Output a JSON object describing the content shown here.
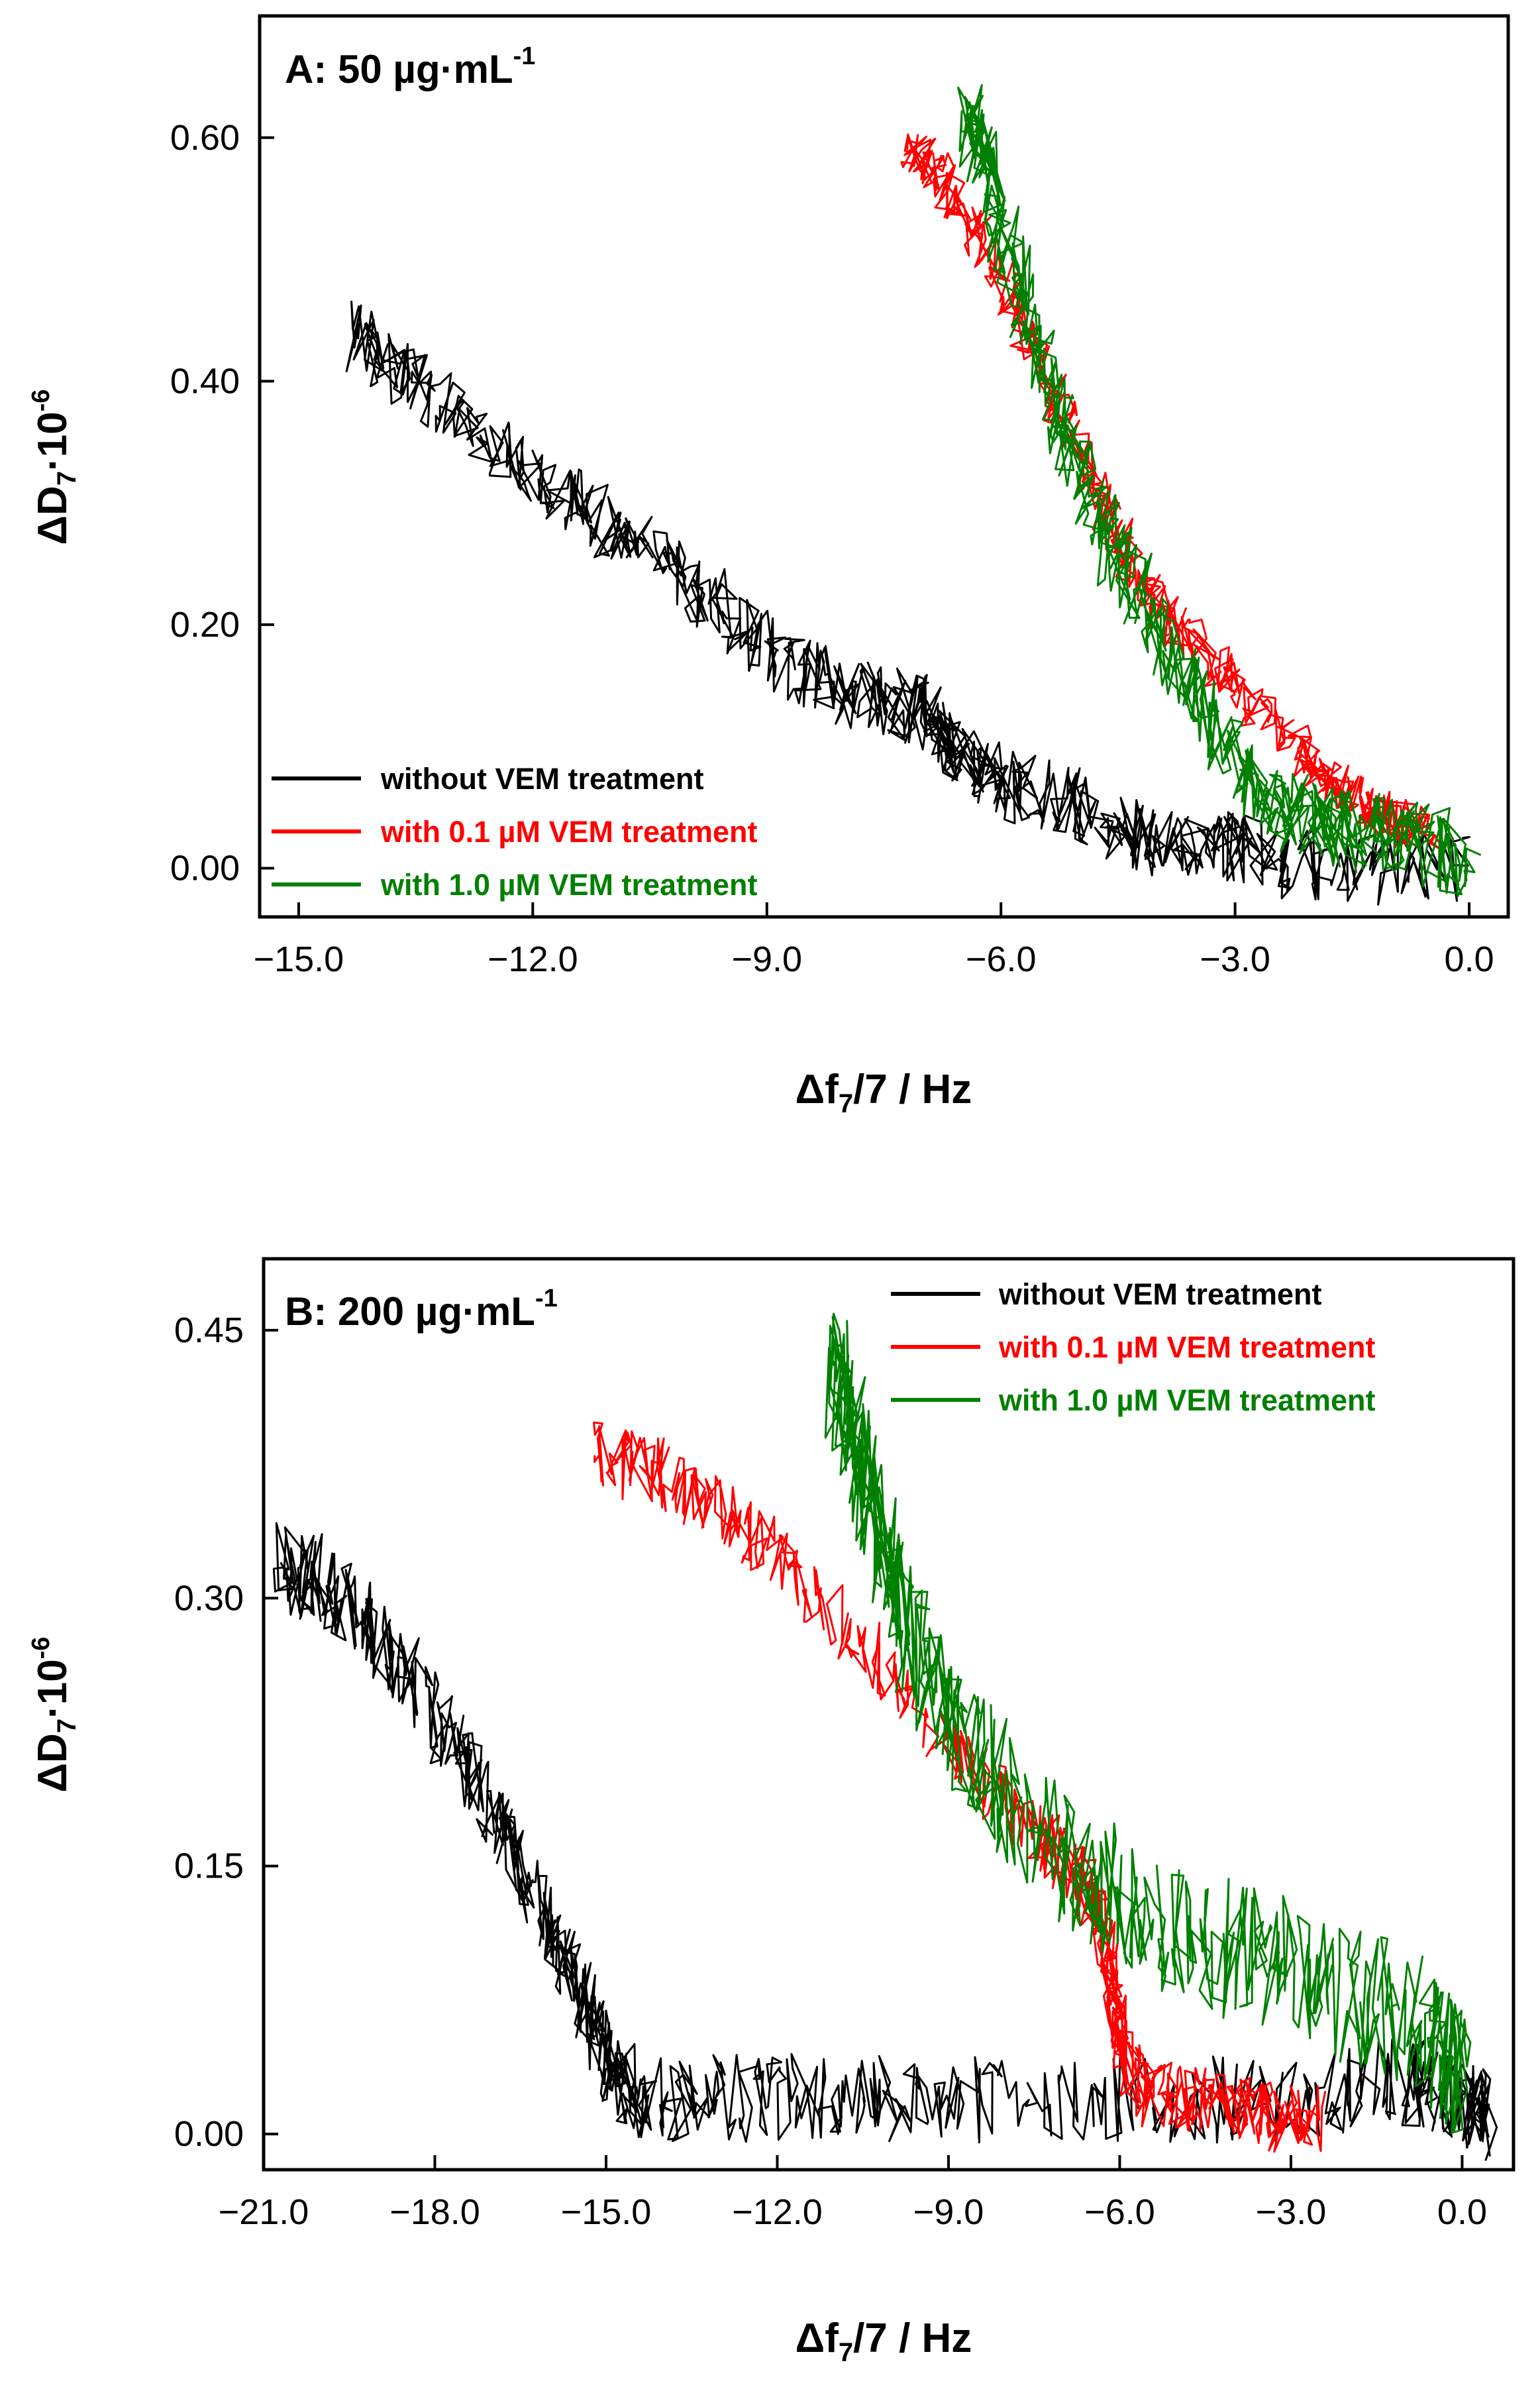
{
  "chart_data": [
    {
      "id": "A",
      "type": "line",
      "title": "A: 50 µg·mL",
      "title_exponent": "-1",
      "xlabel_main": "Δf",
      "xlabel_sub": "7",
      "xlabel_rest": "/7 / Hz",
      "ylabel_main": "ΔD",
      "ylabel_sub": "7",
      "ylabel_rest": "·10",
      "ylabel_exp": "-6",
      "xlim": [
        -15.5,
        0.5
      ],
      "ylim": [
        -0.04,
        0.7
      ],
      "xticks": [
        -15.0,
        -12.0,
        -9.0,
        -6.0,
        -3.0,
        0.0
      ],
      "xtick_labels": [
        "−15.0",
        "−12.0",
        "−9.0",
        "−6.0",
        "−3.0",
        "0.0"
      ],
      "yticks": [
        0.0,
        0.2,
        0.4,
        0.6
      ],
      "ytick_labels": [
        "0.00",
        "0.20",
        "0.40",
        "0.60"
      ],
      "legend_position": "bottom-left",
      "series": [
        {
          "name": "without VEM treatment",
          "color": "#000000",
          "points": [
            [
              0.0,
              0.0
            ],
            [
              -2.0,
              0.0
            ],
            [
              -3.0,
              0.02
            ],
            [
              -4.0,
              0.02
            ],
            [
              -5.0,
              0.05
            ],
            [
              -6.0,
              0.07
            ],
            [
              -6.6,
              0.1
            ],
            [
              -7.0,
              0.13
            ],
            [
              -7.6,
              0.14
            ],
            [
              -8.5,
              0.16
            ],
            [
              -9.5,
              0.21
            ],
            [
              -10.5,
              0.26
            ],
            [
              -11.5,
              0.3
            ],
            [
              -12.5,
              0.35
            ],
            [
              -13.5,
              0.4
            ],
            [
              -14.3,
              0.44
            ]
          ],
          "noise_y": 0.03
        },
        {
          "name": "with 0.1 µM VEM treatment",
          "color": "#ff0000",
          "points": [
            [
              -0.5,
              0.03
            ],
            [
              -1.0,
              0.04
            ],
            [
              -1.6,
              0.06
            ],
            [
              -2.2,
              0.1
            ],
            [
              -3.0,
              0.15
            ],
            [
              -3.8,
              0.2
            ],
            [
              -4.4,
              0.26
            ],
            [
              -5.0,
              0.34
            ],
            [
              -5.6,
              0.43
            ],
            [
              -6.2,
              0.51
            ],
            [
              -6.8,
              0.57
            ],
            [
              -7.2,
              0.59
            ]
          ],
          "noise_y": 0.02
        },
        {
          "name": "with 1.0 µM VEM treatment",
          "color": "#008000",
          "points": [
            [
              0.0,
              0.01
            ],
            [
              -0.8,
              0.02
            ],
            [
              -1.5,
              0.03
            ],
            [
              -2.2,
              0.04
            ],
            [
              -2.8,
              0.07
            ],
            [
              -3.5,
              0.14
            ],
            [
              -4.2,
              0.22
            ],
            [
              -4.8,
              0.29
            ],
            [
              -5.3,
              0.38
            ],
            [
              -5.8,
              0.48
            ],
            [
              -6.2,
              0.58
            ],
            [
              -6.4,
              0.61
            ]
          ],
          "noise_y": 0.035
        }
      ]
    },
    {
      "id": "B",
      "type": "line",
      "title": "B: 200 µg·mL",
      "title_exponent": "-1",
      "xlabel_main": "Δf",
      "xlabel_sub": "7",
      "xlabel_rest": "/7 / Hz",
      "ylabel_main": "ΔD",
      "ylabel_sub": "7",
      "ylabel_rest": "·10",
      "ylabel_exp": "-6",
      "xlim": [
        -21.0,
        0.9
      ],
      "ylim": [
        -0.02,
        0.49
      ],
      "xticks": [
        -21.0,
        -18.0,
        -15.0,
        -12.0,
        -9.0,
        -6.0,
        -3.0,
        0.0
      ],
      "xtick_labels": [
        "−21.0",
        "−18.0",
        "−15.0",
        "−12.0",
        "−9.0",
        "−6.0",
        "−3.0",
        "0.0"
      ],
      "yticks": [
        0.0,
        0.15,
        0.3,
        0.45
      ],
      "ytick_labels": [
        "0.00",
        "0.15",
        "0.30",
        "0.45"
      ],
      "legend_position": "top-right",
      "series": [
        {
          "name": "without VEM treatment",
          "color": "#000000",
          "points": [
            [
              0.5,
              0.01
            ],
            [
              0.0,
              0.02
            ],
            [
              -1.0,
              0.03
            ],
            [
              -3.0,
              0.02
            ],
            [
              -6.0,
              0.02
            ],
            [
              -9.0,
              0.02
            ],
            [
              -11.0,
              0.02
            ],
            [
              -13.0,
              0.02
            ],
            [
              -14.5,
              0.02
            ],
            [
              -15.0,
              0.04
            ],
            [
              -15.5,
              0.08
            ],
            [
              -16.2,
              0.13
            ],
            [
              -17.0,
              0.18
            ],
            [
              -18.0,
              0.23
            ],
            [
              -19.0,
              0.28
            ],
            [
              -20.0,
              0.31
            ],
            [
              -20.7,
              0.32
            ]
          ],
          "noise_y": 0.025
        },
        {
          "name": "with 0.1 µM VEM treatment",
          "color": "#ff0000",
          "points": [
            [
              -2.5,
              0.01
            ],
            [
              -3.5,
              0.01
            ],
            [
              -4.5,
              0.02
            ],
            [
              -5.5,
              0.02
            ],
            [
              -6.0,
              0.05
            ],
            [
              -6.2,
              0.1
            ],
            [
              -6.6,
              0.14
            ],
            [
              -7.5,
              0.17
            ],
            [
              -9.0,
              0.22
            ],
            [
              -11.0,
              0.29
            ],
            [
              -12.5,
              0.34
            ],
            [
              -14.0,
              0.37
            ],
            [
              -15.2,
              0.38
            ]
          ],
          "noise_y": 0.02
        },
        {
          "name": "with 1.0 µM VEM treatment",
          "color": "#008000",
          "points": [
            [
              0.0,
              0.03
            ],
            [
              -0.5,
              0.06
            ],
            [
              -2.0,
              0.08
            ],
            [
              -3.5,
              0.1
            ],
            [
              -5.0,
              0.11
            ],
            [
              -6.5,
              0.14
            ],
            [
              -8.0,
              0.19
            ],
            [
              -9.0,
              0.23
            ],
            [
              -9.8,
              0.29
            ],
            [
              -10.3,
              0.35
            ],
            [
              -10.7,
              0.4
            ],
            [
              -11.0,
              0.43
            ]
          ],
          "noise_y": 0.04
        }
      ]
    }
  ]
}
